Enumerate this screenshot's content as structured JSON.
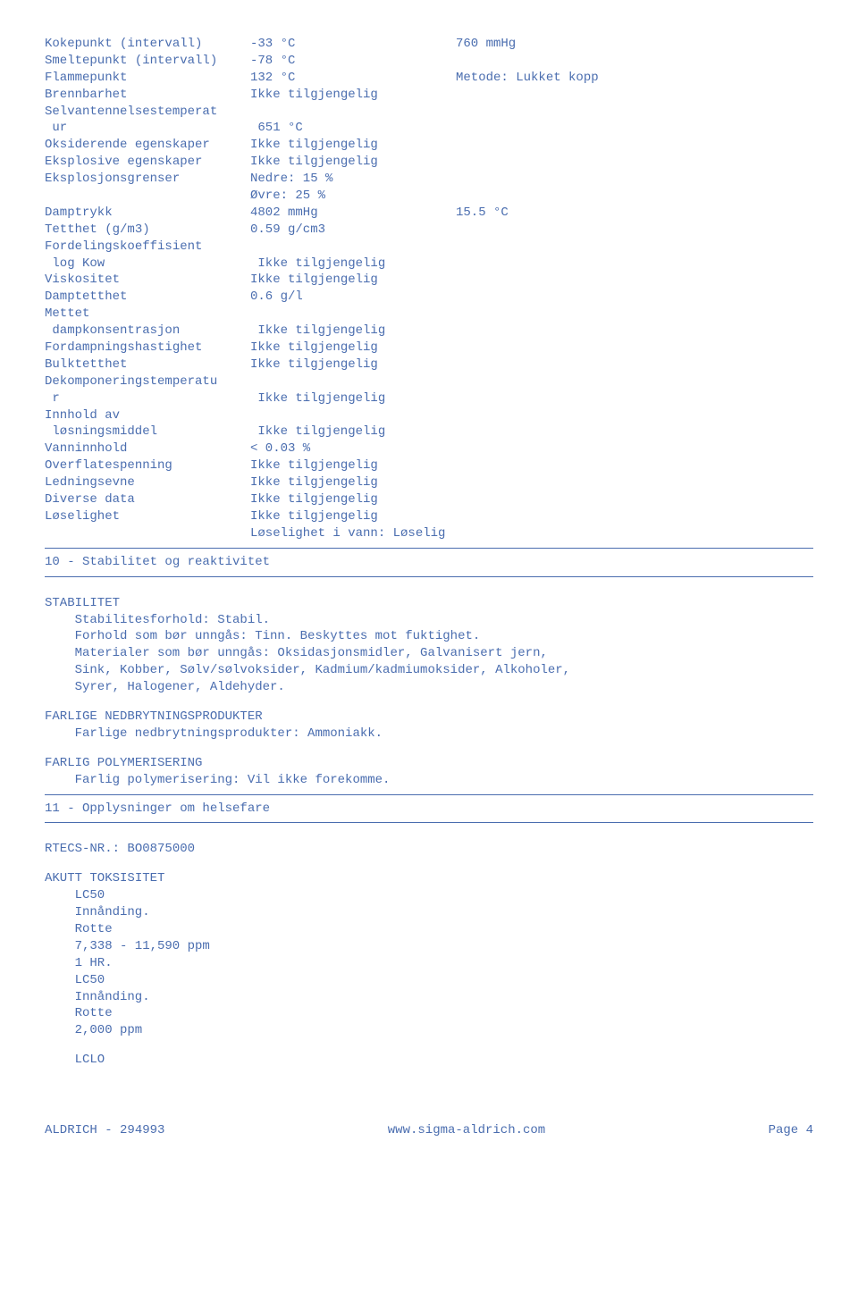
{
  "text_color": "#4a6daf",
  "props": {
    "kokepunkt": {
      "label": "Kokepunkt (intervall)",
      "val": "-33 °C",
      "extra": "760 mmHg"
    },
    "smeltepunkt": {
      "label": "Smeltepunkt (intervall)",
      "val": "-78 °C",
      "extra": ""
    },
    "flammepunkt": {
      "label": "Flammepunkt",
      "val": "132 °C",
      "extra": "Metode: Lukket kopp"
    },
    "brennbarhet": {
      "label": "Brennbarhet",
      "val": "Ikke tilgjengelig",
      "extra": ""
    },
    "selvantenn_head": {
      "label": "Selvantennelsestemperat",
      "val": "",
      "extra": ""
    },
    "selvantenn_ur": {
      "label": "ur",
      "val": "651 °C",
      "extra": ""
    },
    "oksiderende": {
      "label": "Oksiderende egenskaper",
      "val": "Ikke tilgjengelig",
      "extra": ""
    },
    "eksplosive": {
      "label": "Eksplosive egenskaper",
      "val": "Ikke tilgjengelig",
      "extra": ""
    },
    "eksplosjons": {
      "label": "Eksplosjonsgrenser",
      "val": "Nedre: 15 %",
      "extra": ""
    },
    "eksplosjons_ovre": {
      "label": "",
      "val": "Øvre: 25 %",
      "extra": ""
    },
    "damptrykk": {
      "label": "Damptrykk",
      "val": "4802 mmHg",
      "extra": "15.5 °C"
    },
    "tetthet": {
      "label": "Tetthet (g/m3)",
      "val": "0.59 g/cm3",
      "extra": ""
    },
    "fordelings_head": {
      "label": "Fordelingskoeffisient",
      "val": "",
      "extra": ""
    },
    "logkow": {
      "label": "log Kow",
      "val": "Ikke tilgjengelig",
      "extra": ""
    },
    "viskositet": {
      "label": "Viskositet",
      "val": "Ikke tilgjengelig",
      "extra": ""
    },
    "damptetthet": {
      "label": "Damptetthet",
      "val": "0.6 g/l",
      "extra": ""
    },
    "mettet_head": {
      "label": "Mettet",
      "val": "",
      "extra": ""
    },
    "dampkons": {
      "label": "dampkonsentrasjon",
      "val": "Ikke tilgjengelig",
      "extra": ""
    },
    "fordampning": {
      "label": "Fordampningshastighet",
      "val": "Ikke tilgjengelig",
      "extra": ""
    },
    "bulktetthet": {
      "label": "Bulktetthet",
      "val": "Ikke tilgjengelig",
      "extra": ""
    },
    "dekomp_head": {
      "label": "Dekomponeringstemperatu",
      "val": "",
      "extra": ""
    },
    "dekomp_r": {
      "label": "r",
      "val": "Ikke tilgjengelig",
      "extra": ""
    },
    "innhold_head": {
      "label": "Innhold av",
      "val": "",
      "extra": ""
    },
    "losningsmiddel": {
      "label": "løsningsmiddel",
      "val": "Ikke tilgjengelig",
      "extra": ""
    },
    "vanninnhold": {
      "label": "Vanninnhold",
      "val": "< 0.03 %",
      "extra": ""
    },
    "overflate": {
      "label": "Overflatespenning",
      "val": "Ikke tilgjengelig",
      "extra": ""
    },
    "ledningsevne": {
      "label": "Ledningsevne",
      "val": "Ikke tilgjengelig",
      "extra": ""
    },
    "diverse": {
      "label": "Diverse data",
      "val": "Ikke tilgjengelig",
      "extra": ""
    },
    "loselighet": {
      "label": "Løselighet",
      "val": "Ikke tilgjengelig",
      "extra": ""
    },
    "loselighet_vann": {
      "label": "",
      "val": "Løselighet i vann: Løselig",
      "extra": ""
    }
  },
  "sec10": {
    "title": "10 - Stabilitet og reaktivitet",
    "stabilitet_head": "STABILITET",
    "line1": "Stabilitesforhold: Stabil.",
    "line2": "Forhold som bør unngås: Tinn. Beskyttes mot fuktighet.",
    "line3": "Materialer som bør unngås: Oksidasjonsmidler, Galvanisert jern,",
    "line4": "Sink, Kobber, Sølv/sølvoksider, Kadmium/kadmiumoksider, Alkoholer,",
    "line5": "Syrer, Halogener, Aldehyder.",
    "nedbryt_head": "FARLIGE NEDBRYTNINGSPRODUKTER",
    "nedbryt_line": "Farlige nedbrytningsprodukter: Ammoniakk.",
    "polymer_head": "FARLIG POLYMERISERING",
    "polymer_line": "Farlig polymerisering: Vil ikke forekomme."
  },
  "sec11": {
    "title": "11 - Opplysninger om helsefare",
    "rtecs": "RTECS-NR.: BO0875000",
    "akutt_head": "AKUTT TOKSISITET",
    "l1": "LC50",
    "l2": "Innånding.",
    "l3": "Rotte",
    "l4": "7,338 - 11,590 ppm",
    "l5": "1 HR.",
    "l6": "LC50",
    "l7": "Innånding.",
    "l8": "Rotte",
    "l9": "2,000 ppm",
    "l10": "LCLO"
  },
  "footer": {
    "left": "ALDRICH - 294993",
    "center": "www.sigma-aldrich.com",
    "right": "Page    4"
  }
}
